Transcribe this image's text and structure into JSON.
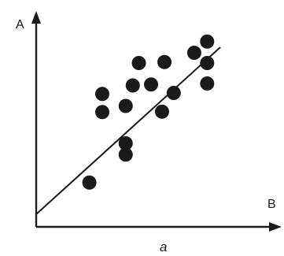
{
  "chart_data": {
    "type": "scatter",
    "title": "",
    "xlabel": "B",
    "ylabel": "A",
    "caption": "a",
    "xlim": [
      0,
      100
    ],
    "ylim": [
      0,
      100
    ],
    "grid": false,
    "points": [
      {
        "x": 21.8,
        "y": 16.1
      },
      {
        "x": 27.1,
        "y": 51.9
      },
      {
        "x": 27.1,
        "y": 61.1
      },
      {
        "x": 36.7,
        "y": 30.3
      },
      {
        "x": 36.7,
        "y": 36.0
      },
      {
        "x": 36.7,
        "y": 55.0
      },
      {
        "x": 39.6,
        "y": 65.4
      },
      {
        "x": 42.1,
        "y": 76.8
      },
      {
        "x": 47.1,
        "y": 65.9
      },
      {
        "x": 51.6,
        "y": 52.1
      },
      {
        "x": 52.6,
        "y": 77.3
      },
      {
        "x": 56.4,
        "y": 61.6
      },
      {
        "x": 64.8,
        "y": 82.0
      },
      {
        "x": 70.1,
        "y": 76.8
      },
      {
        "x": 70.1,
        "y": 66.4
      },
      {
        "x": 70.1,
        "y": 87.7
      }
    ],
    "trendline": {
      "x": [
        0,
        75.5
      ],
      "y": [
        0,
        84.8
      ]
    }
  }
}
